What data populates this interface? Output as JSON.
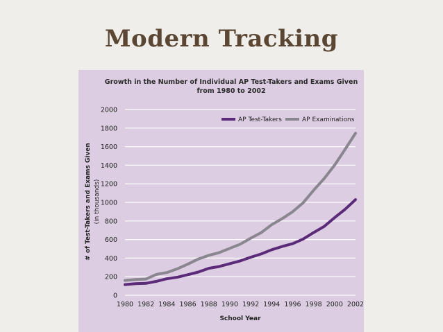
{
  "slide": {
    "title": "Modern Tracking"
  },
  "chart_data": {
    "type": "line",
    "title_line1": "Growth in the Number of Individual AP Test-Takers and Exams Given",
    "title_line2": "from 1980 to 2002",
    "xlabel": "School Year",
    "ylabel": "# of Test-Takers and Exams Given",
    "ylabel_sub": "(in thousands)",
    "ylim": [
      0,
      2000
    ],
    "yticks": [
      0,
      200,
      400,
      600,
      800,
      1000,
      1200,
      1400,
      1600,
      1800,
      2000
    ],
    "xlim": [
      1980,
      2002
    ],
    "xticks": [
      1980,
      1982,
      1984,
      1986,
      1988,
      1990,
      1992,
      1994,
      1996,
      1998,
      2000,
      2002
    ],
    "grid": true,
    "legend": "top-right",
    "x": [
      1980,
      1981,
      1982,
      1983,
      1984,
      1985,
      1986,
      1987,
      1988,
      1989,
      1990,
      1991,
      1992,
      1993,
      1994,
      1995,
      1996,
      1997,
      1998,
      1999,
      2000,
      2001,
      2002
    ],
    "series": [
      {
        "name": "AP Test-Takers",
        "color": "#5b2a79",
        "values": [
          115,
          125,
          128,
          150,
          178,
          195,
          222,
          250,
          290,
          310,
          340,
          370,
          410,
          445,
          490,
          525,
          555,
          605,
          675,
          740,
          835,
          925,
          1030
        ]
      },
      {
        "name": "AP Examinations",
        "color": "#8a8690",
        "values": [
          160,
          170,
          175,
          225,
          245,
          285,
          335,
          390,
          430,
          460,
          505,
          550,
          615,
          675,
          760,
          825,
          900,
          995,
          1130,
          1255,
          1400,
          1570,
          1745
        ]
      }
    ]
  }
}
